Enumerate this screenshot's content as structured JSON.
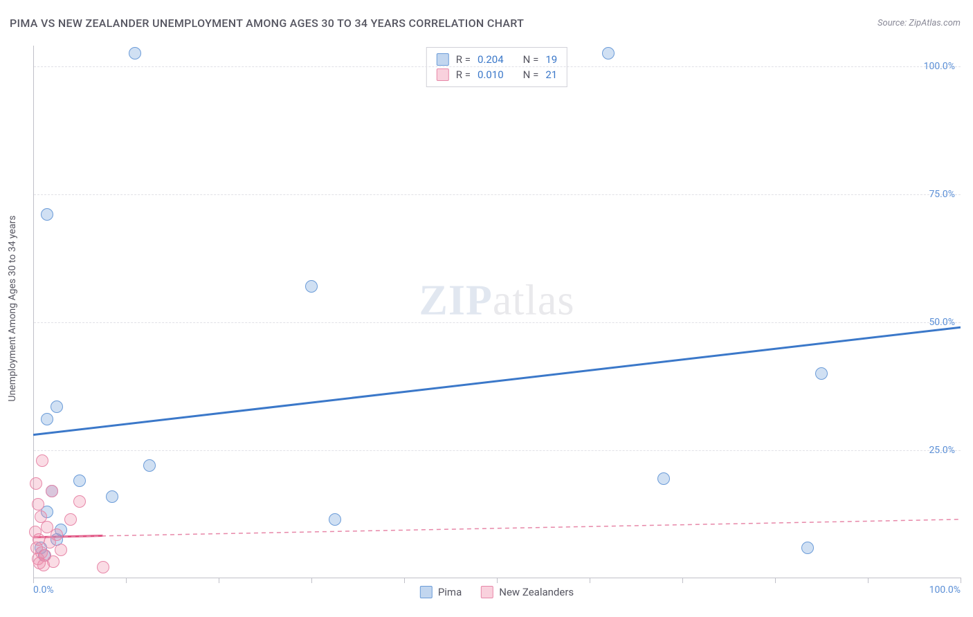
{
  "title": "PIMA VS NEW ZEALANDER UNEMPLOYMENT AMONG AGES 30 TO 34 YEARS CORRELATION CHART",
  "source": "Source: ZipAtlas.com",
  "y_axis_title": "Unemployment Among Ages 30 to 34 years",
  "watermark": {
    "zip": "ZIP",
    "atlas": "atlas"
  },
  "chart": {
    "type": "scatter",
    "xlim": [
      0,
      100
    ],
    "ylim": [
      0,
      104
    ],
    "x_ticks": [
      0,
      10,
      20,
      30,
      40,
      50,
      60,
      70,
      80,
      90,
      100
    ],
    "x_tick_labels": {
      "0": "0.0%",
      "100": "100.0%"
    },
    "y_ticks": [
      25,
      50,
      75,
      100
    ],
    "y_tick_labels": {
      "25": "25.0%",
      "50": "50.0%",
      "75": "75.0%",
      "100": "100.0%"
    },
    "grid_color": "#e0e0e6",
    "axis_color": "#c0c0c8",
    "background_color": "#ffffff",
    "tick_label_color": "#5b8fd6",
    "label_fontsize": 14,
    "point_radius": 9,
    "series": [
      {
        "name": "Pima",
        "fill": "rgba(120,165,220,0.35)",
        "stroke": "#6a9bd8",
        "points": [
          [
            11,
            102.5
          ],
          [
            62,
            102.5
          ],
          [
            1.5,
            71
          ],
          [
            30,
            57
          ],
          [
            85,
            40
          ],
          [
            2.5,
            33.5
          ],
          [
            1.5,
            31
          ],
          [
            12.5,
            22
          ],
          [
            68,
            19.5
          ],
          [
            5,
            19
          ],
          [
            2,
            17
          ],
          [
            8.5,
            16
          ],
          [
            1.5,
            13
          ],
          [
            32.5,
            11.5
          ],
          [
            3,
            9.5
          ],
          [
            83.5,
            6
          ],
          [
            2.5,
            7.5
          ],
          [
            0.8,
            6
          ],
          [
            1.2,
            4.5
          ]
        ],
        "trend": {
          "x1": 0,
          "y1": 28,
          "x2": 100,
          "y2": 49,
          "color": "#3b78c9",
          "width": 3,
          "dash": "none"
        },
        "stats": {
          "R": "0.204",
          "N": "19"
        }
      },
      {
        "name": "New Zealanders",
        "fill": "rgba(240,140,170,0.30)",
        "stroke": "#e787a8",
        "points": [
          [
            1,
            23
          ],
          [
            0.3,
            18.5
          ],
          [
            2,
            17
          ],
          [
            5,
            15
          ],
          [
            0.5,
            14.5
          ],
          [
            0.8,
            12
          ],
          [
            4,
            11.5
          ],
          [
            1.5,
            10
          ],
          [
            0.2,
            9
          ],
          [
            2.5,
            8.5
          ],
          [
            0.6,
            7.5
          ],
          [
            1.8,
            7
          ],
          [
            0.4,
            6
          ],
          [
            3,
            5.5
          ],
          [
            0.9,
            5
          ],
          [
            1.3,
            4.5
          ],
          [
            0.5,
            3.8
          ],
          [
            2.2,
            3.2
          ],
          [
            7.5,
            2.2
          ],
          [
            0.7,
            3
          ],
          [
            1.1,
            2.5
          ]
        ],
        "trend": {
          "x1": 0,
          "y1": 8,
          "x2": 100,
          "y2": 11.5,
          "color": "#e787a8",
          "width": 1.5,
          "dash": "6 5"
        },
        "solid_segment": {
          "x1": 0,
          "y1": 8,
          "x2": 7.5,
          "y2": 8.3,
          "color": "#e05080",
          "width": 3
        },
        "stats": {
          "R": "0.010",
          "N": "21"
        }
      }
    ]
  },
  "stat_box": {
    "rows": [
      {
        "swatch_fill": "rgba(120,165,220,0.45)",
        "swatch_stroke": "#6a9bd8",
        "r_label": "R =",
        "r_val": "0.204",
        "n_label": "N =",
        "n_val": "19"
      },
      {
        "swatch_fill": "rgba(240,140,170,0.40)",
        "swatch_stroke": "#e787a8",
        "r_label": "R =",
        "r_val": "0.010",
        "n_label": "N =",
        "n_val": "21"
      }
    ]
  },
  "bottom_legend": [
    {
      "swatch_fill": "rgba(120,165,220,0.45)",
      "swatch_stroke": "#6a9bd8",
      "label": "Pima"
    },
    {
      "swatch_fill": "rgba(240,140,170,0.40)",
      "swatch_stroke": "#e787a8",
      "label": "New Zealanders"
    }
  ]
}
